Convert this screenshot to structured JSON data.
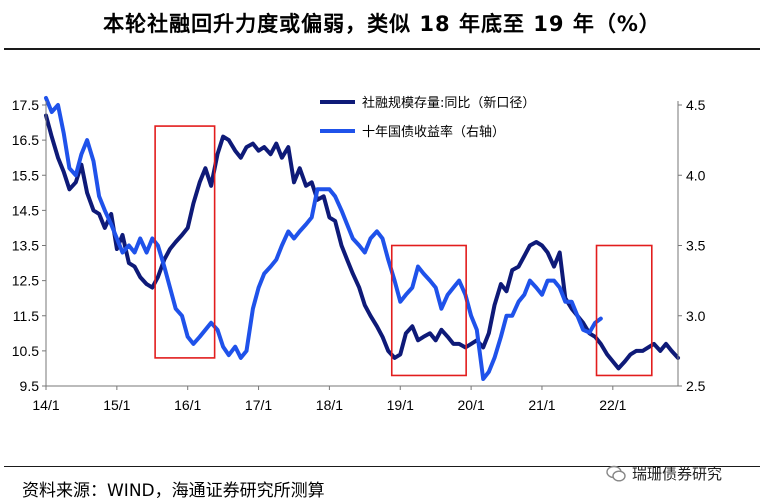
{
  "title": "本轮社融回升力度或偏弱，类似 18 年底至 19 年（%）",
  "source": "资料来源：WIND，海通证券研究所测算",
  "brand": "瑞珊债券研究",
  "colors": {
    "series1": "#0e1a78",
    "series2": "#1f52ea",
    "box": "#e21d1d"
  },
  "chart_data": {
    "type": "line",
    "x_tick_labels": [
      "14/1",
      "15/1",
      "16/1",
      "17/1",
      "18/1",
      "19/1",
      "20/1",
      "21/1",
      "22/1"
    ],
    "x_range": [
      2014.0,
      2022.92
    ],
    "y_left": {
      "ticks": [
        "17.5",
        "16.5",
        "15.5",
        "14.5",
        "13.5",
        "12.5",
        "11.5",
        "10.5",
        "9.5"
      ],
      "range": [
        9.5,
        17.5
      ]
    },
    "y_right": {
      "ticks": [
        "4.5",
        "4.0",
        "3.5",
        "3.0",
        "2.5"
      ],
      "range": [
        2.5,
        4.5
      ]
    },
    "series": [
      {
        "name": "社融规模存量:同比（新口径）",
        "axis": "left",
        "points": [
          [
            2014.0,
            17.2
          ],
          [
            2014.08,
            16.6
          ],
          [
            2014.17,
            16.0
          ],
          [
            2014.25,
            15.6
          ],
          [
            2014.33,
            15.1
          ],
          [
            2014.42,
            15.3
          ],
          [
            2014.5,
            15.8
          ],
          [
            2014.58,
            15.0
          ],
          [
            2014.67,
            14.5
          ],
          [
            2014.75,
            14.4
          ],
          [
            2014.83,
            14.0
          ],
          [
            2014.92,
            14.4
          ],
          [
            2015.0,
            13.4
          ],
          [
            2015.08,
            13.8
          ],
          [
            2015.17,
            13.0
          ],
          [
            2015.25,
            12.9
          ],
          [
            2015.33,
            12.6
          ],
          [
            2015.42,
            12.4
          ],
          [
            2015.5,
            12.3
          ],
          [
            2015.58,
            12.6
          ],
          [
            2015.67,
            13.1
          ],
          [
            2015.75,
            13.4
          ],
          [
            2015.83,
            13.6
          ],
          [
            2015.92,
            13.8
          ],
          [
            2016.0,
            14.0
          ],
          [
            2016.08,
            14.7
          ],
          [
            2016.17,
            15.3
          ],
          [
            2016.25,
            15.7
          ],
          [
            2016.33,
            15.2
          ],
          [
            2016.42,
            16.1
          ],
          [
            2016.5,
            16.6
          ],
          [
            2016.58,
            16.5
          ],
          [
            2016.67,
            16.2
          ],
          [
            2016.75,
            16.0
          ],
          [
            2016.83,
            16.3
          ],
          [
            2016.92,
            16.4
          ],
          [
            2017.0,
            16.2
          ],
          [
            2017.08,
            16.3
          ],
          [
            2017.17,
            16.1
          ],
          [
            2017.25,
            16.4
          ],
          [
            2017.33,
            16.0
          ],
          [
            2017.42,
            16.3
          ],
          [
            2017.5,
            15.3
          ],
          [
            2017.58,
            15.7
          ],
          [
            2017.67,
            15.2
          ],
          [
            2017.75,
            15.3
          ],
          [
            2017.83,
            14.8
          ],
          [
            2017.92,
            14.9
          ],
          [
            2018.0,
            14.3
          ],
          [
            2018.08,
            14.2
          ],
          [
            2018.17,
            13.5
          ],
          [
            2018.25,
            13.1
          ],
          [
            2018.33,
            12.7
          ],
          [
            2018.42,
            12.3
          ],
          [
            2018.5,
            11.8
          ],
          [
            2018.58,
            11.5
          ],
          [
            2018.67,
            11.2
          ],
          [
            2018.75,
            10.9
          ],
          [
            2018.83,
            10.5
          ],
          [
            2018.92,
            10.3
          ],
          [
            2019.0,
            10.4
          ],
          [
            2019.08,
            11.0
          ],
          [
            2019.17,
            11.2
          ],
          [
            2019.25,
            10.8
          ],
          [
            2019.33,
            10.9
          ],
          [
            2019.42,
            11.0
          ],
          [
            2019.5,
            10.8
          ],
          [
            2019.58,
            11.1
          ],
          [
            2019.67,
            10.9
          ],
          [
            2019.75,
            10.7
          ],
          [
            2019.83,
            10.7
          ],
          [
            2019.92,
            10.6
          ],
          [
            2020.0,
            10.7
          ],
          [
            2020.08,
            10.8
          ],
          [
            2020.17,
            10.6
          ],
          [
            2020.25,
            11.0
          ],
          [
            2020.33,
            11.8
          ],
          [
            2020.42,
            12.4
          ],
          [
            2020.5,
            12.2
          ],
          [
            2020.58,
            12.8
          ],
          [
            2020.67,
            12.9
          ],
          [
            2020.75,
            13.2
          ],
          [
            2020.83,
            13.5
          ],
          [
            2020.92,
            13.6
          ],
          [
            2021.0,
            13.5
          ],
          [
            2021.08,
            13.3
          ],
          [
            2021.17,
            12.9
          ],
          [
            2021.25,
            13.3
          ],
          [
            2021.33,
            12.0
          ],
          [
            2021.42,
            11.7
          ],
          [
            2021.5,
            11.5
          ],
          [
            2021.58,
            11.3
          ],
          [
            2021.67,
            11.0
          ],
          [
            2021.75,
            10.9
          ],
          [
            2021.83,
            10.7
          ],
          [
            2021.92,
            10.4
          ],
          [
            2022.0,
            10.2
          ],
          [
            2022.08,
            10.0
          ],
          [
            2022.17,
            10.2
          ],
          [
            2022.25,
            10.4
          ],
          [
            2022.33,
            10.5
          ],
          [
            2022.42,
            10.5
          ],
          [
            2022.5,
            10.6
          ],
          [
            2022.58,
            10.7
          ],
          [
            2022.67,
            10.5
          ],
          [
            2022.75,
            10.7
          ],
          [
            2022.83,
            10.5
          ],
          [
            2022.92,
            10.3
          ]
        ]
      },
      {
        "name": "十年国债收益率（右轴）",
        "axis": "right",
        "points": [
          [
            2014.0,
            4.55
          ],
          [
            2014.08,
            4.45
          ],
          [
            2014.17,
            4.5
          ],
          [
            2014.25,
            4.3
          ],
          [
            2014.33,
            4.05
          ],
          [
            2014.42,
            4.0
          ],
          [
            2014.5,
            4.15
          ],
          [
            2014.58,
            4.25
          ],
          [
            2014.67,
            4.1
          ],
          [
            2014.75,
            3.85
          ],
          [
            2014.83,
            3.75
          ],
          [
            2014.92,
            3.65
          ],
          [
            2015.0,
            3.55
          ],
          [
            2015.08,
            3.45
          ],
          [
            2015.17,
            3.5
          ],
          [
            2015.25,
            3.45
          ],
          [
            2015.33,
            3.55
          ],
          [
            2015.42,
            3.45
          ],
          [
            2015.5,
            3.55
          ],
          [
            2015.58,
            3.5
          ],
          [
            2015.67,
            3.35
          ],
          [
            2015.75,
            3.2
          ],
          [
            2015.83,
            3.05
          ],
          [
            2015.92,
            3.0
          ],
          [
            2016.0,
            2.85
          ],
          [
            2016.08,
            2.8
          ],
          [
            2016.17,
            2.85
          ],
          [
            2016.25,
            2.9
          ],
          [
            2016.33,
            2.95
          ],
          [
            2016.42,
            2.9
          ],
          [
            2016.5,
            2.78
          ],
          [
            2016.58,
            2.72
          ],
          [
            2016.67,
            2.78
          ],
          [
            2016.75,
            2.7
          ],
          [
            2016.83,
            2.75
          ],
          [
            2016.92,
            3.05
          ],
          [
            2017.0,
            3.2
          ],
          [
            2017.08,
            3.3
          ],
          [
            2017.17,
            3.35
          ],
          [
            2017.25,
            3.4
          ],
          [
            2017.33,
            3.5
          ],
          [
            2017.42,
            3.6
          ],
          [
            2017.5,
            3.55
          ],
          [
            2017.58,
            3.6
          ],
          [
            2017.67,
            3.65
          ],
          [
            2017.75,
            3.7
          ],
          [
            2017.83,
            3.9
          ],
          [
            2017.92,
            3.9
          ],
          [
            2018.0,
            3.9
          ],
          [
            2018.08,
            3.85
          ],
          [
            2018.17,
            3.75
          ],
          [
            2018.25,
            3.65
          ],
          [
            2018.33,
            3.55
          ],
          [
            2018.42,
            3.5
          ],
          [
            2018.5,
            3.45
          ],
          [
            2018.58,
            3.55
          ],
          [
            2018.67,
            3.6
          ],
          [
            2018.75,
            3.55
          ],
          [
            2018.83,
            3.4
          ],
          [
            2018.92,
            3.25
          ],
          [
            2019.0,
            3.1
          ],
          [
            2019.08,
            3.15
          ],
          [
            2019.17,
            3.2
          ],
          [
            2019.25,
            3.35
          ],
          [
            2019.33,
            3.3
          ],
          [
            2019.42,
            3.25
          ],
          [
            2019.5,
            3.2
          ],
          [
            2019.58,
            3.05
          ],
          [
            2019.67,
            3.15
          ],
          [
            2019.75,
            3.2
          ],
          [
            2019.83,
            3.25
          ],
          [
            2019.92,
            3.15
          ],
          [
            2020.0,
            3.0
          ],
          [
            2020.08,
            2.9
          ],
          [
            2020.17,
            2.55
          ],
          [
            2020.25,
            2.6
          ],
          [
            2020.33,
            2.7
          ],
          [
            2020.42,
            2.85
          ],
          [
            2020.5,
            3.0
          ],
          [
            2020.58,
            3.0
          ],
          [
            2020.67,
            3.1
          ],
          [
            2020.75,
            3.15
          ],
          [
            2020.83,
            3.25
          ],
          [
            2020.92,
            3.2
          ],
          [
            2021.0,
            3.15
          ],
          [
            2021.08,
            3.25
          ],
          [
            2021.17,
            3.25
          ],
          [
            2021.25,
            3.2
          ],
          [
            2021.33,
            3.1
          ],
          [
            2021.42,
            3.1
          ],
          [
            2021.5,
            3.0
          ],
          [
            2021.58,
            2.9
          ],
          [
            2021.67,
            2.88
          ],
          [
            2021.75,
            2.95
          ],
          [
            2021.83,
            2.98
          ]
        ]
      }
    ],
    "highlight_boxes": [
      {
        "x_from": 2015.54,
        "x_to": 2016.38,
        "y_from": 10.3,
        "y_to": 16.9
      },
      {
        "x_from": 2018.88,
        "x_to": 2019.93,
        "y_from": 9.8,
        "y_to": 13.5
      },
      {
        "x_from": 2021.77,
        "x_to": 2022.55,
        "y_from": 9.8,
        "y_to": 13.5
      }
    ]
  }
}
